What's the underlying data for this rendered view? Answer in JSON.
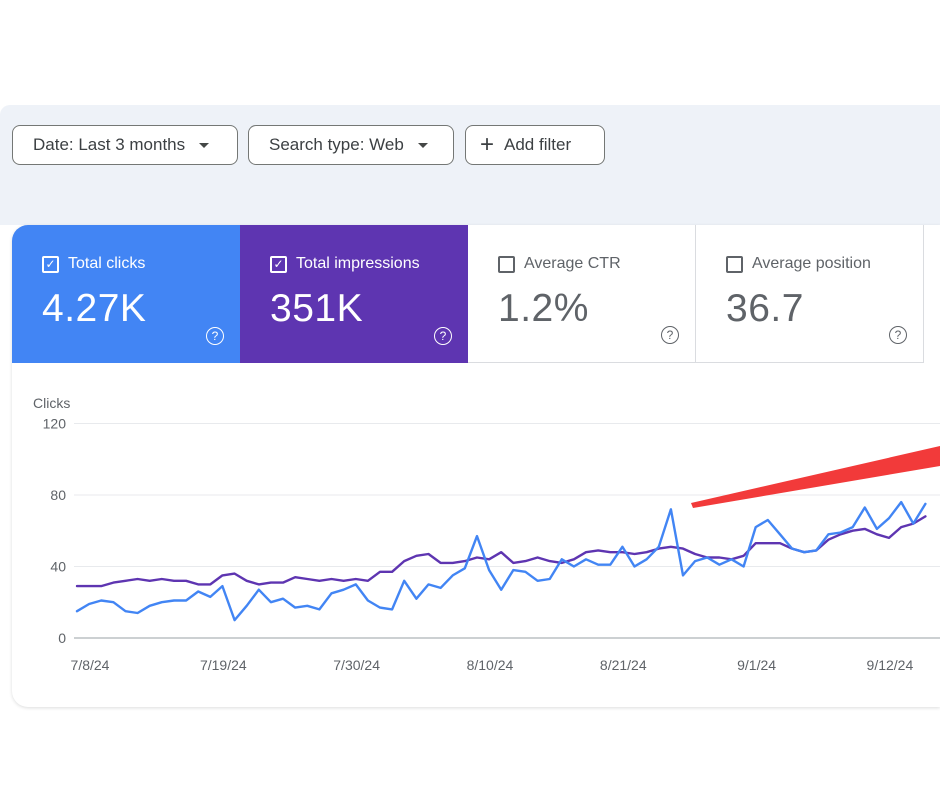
{
  "filters": {
    "date": "Date: Last 3 months",
    "search_type": "Search type: Web",
    "add_filter": "Add filter"
  },
  "metrics": [
    {
      "label": "Total clicks",
      "value": "4.27K",
      "checked": true,
      "color": "#4285f4"
    },
    {
      "label": "Total impressions",
      "value": "351K",
      "checked": true,
      "color": "#5e35b1"
    },
    {
      "label": "Average CTR",
      "value": "1.2%",
      "checked": false
    },
    {
      "label": "Average position",
      "value": "36.7",
      "checked": false
    }
  ],
  "help_glyph": "?",
  "check_glyph": "✓",
  "annotation": {
    "type": "red-arrow",
    "color": "#f23a3a"
  },
  "chart_data": {
    "type": "line",
    "ylabel": "Clicks",
    "ylim": [
      0,
      120
    ],
    "yticks": [
      0,
      40,
      80,
      120
    ],
    "grid": true,
    "x_ticks": [
      "7/8/24",
      "7/19/24",
      "7/30/24",
      "8/10/24",
      "8/21/24",
      "9/1/24",
      "9/12/24"
    ],
    "start": "2024-07-08",
    "x_ticks_day": [
      0,
      11,
      22,
      33,
      44,
      55,
      66
    ],
    "series": [
      {
        "color": "#4285f4",
        "values": [
          15,
          19,
          21,
          20,
          15,
          14,
          18,
          20,
          21,
          21,
          26,
          23,
          29,
          10,
          18,
          27,
          20,
          22,
          17,
          18,
          16,
          25,
          27,
          30,
          21,
          17,
          16,
          32,
          22,
          30,
          28,
          35,
          39,
          57,
          38,
          27,
          38,
          37,
          32,
          33,
          44,
          40,
          44,
          41,
          41,
          51,
          40,
          44,
          51,
          72,
          35,
          43,
          45,
          41,
          44,
          40,
          62,
          66,
          58,
          50,
          48,
          49,
          58,
          59,
          62,
          73,
          61,
          67,
          76,
          64,
          75
        ]
      },
      {
        "color": "#5e35b1",
        "values": [
          29,
          29,
          29,
          31,
          32,
          33,
          32,
          33,
          32,
          32,
          30,
          30,
          35,
          36,
          32,
          30,
          31,
          31,
          34,
          33,
          32,
          33,
          32,
          33,
          32,
          37,
          37,
          43,
          46,
          47,
          42,
          42,
          43,
          45,
          44,
          48,
          42,
          43,
          45,
          43,
          42,
          44,
          48,
          49,
          48,
          48,
          47,
          48,
          50,
          51,
          50,
          47,
          45,
          45,
          44,
          46,
          53,
          53,
          53,
          50,
          48,
          49,
          55,
          58,
          60,
          61,
          58,
          56,
          62,
          64,
          68
        ]
      }
    ]
  }
}
